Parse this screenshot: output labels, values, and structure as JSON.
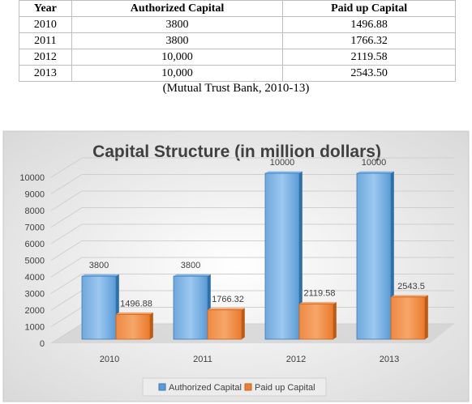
{
  "table": {
    "headers": [
      "Year",
      "Authorized Capital",
      "Paid up Capital"
    ],
    "rows": [
      [
        "2010",
        "3800",
        "1496.88"
      ],
      [
        "2011",
        "3800",
        "1766.32"
      ],
      [
        "2012",
        "10,000",
        "2119.58"
      ],
      [
        "2013",
        "10,000",
        "2543.50"
      ]
    ],
    "caption": "(Mutual Trust Bank, 2010-13)"
  },
  "chart_data": {
    "type": "bar",
    "title": "Capital Structure (in million dollars)",
    "categories": [
      "2010",
      "2011",
      "2012",
      "2013"
    ],
    "series": [
      {
        "name": "Authorized Capital",
        "values": [
          3800,
          3800,
          10000,
          10000
        ],
        "labels": [
          "3800",
          "3800",
          "10000",
          "10000"
        ],
        "color": "#5b9bd5"
      },
      {
        "name": "Paid up Capital",
        "values": [
          1496.88,
          1766.32,
          2119.58,
          2543.5
        ],
        "labels": [
          "1496.88",
          "1766.32",
          "2119.58",
          "2543.5"
        ],
        "color": "#ed7d31"
      }
    ],
    "yticks": [
      "0",
      "1000",
      "2000",
      "3000",
      "4000",
      "5000",
      "6000",
      "7000",
      "8000",
      "9000",
      "10000"
    ],
    "ylim": [
      0,
      10000
    ],
    "legend_position": "bottom",
    "grid": true
  }
}
